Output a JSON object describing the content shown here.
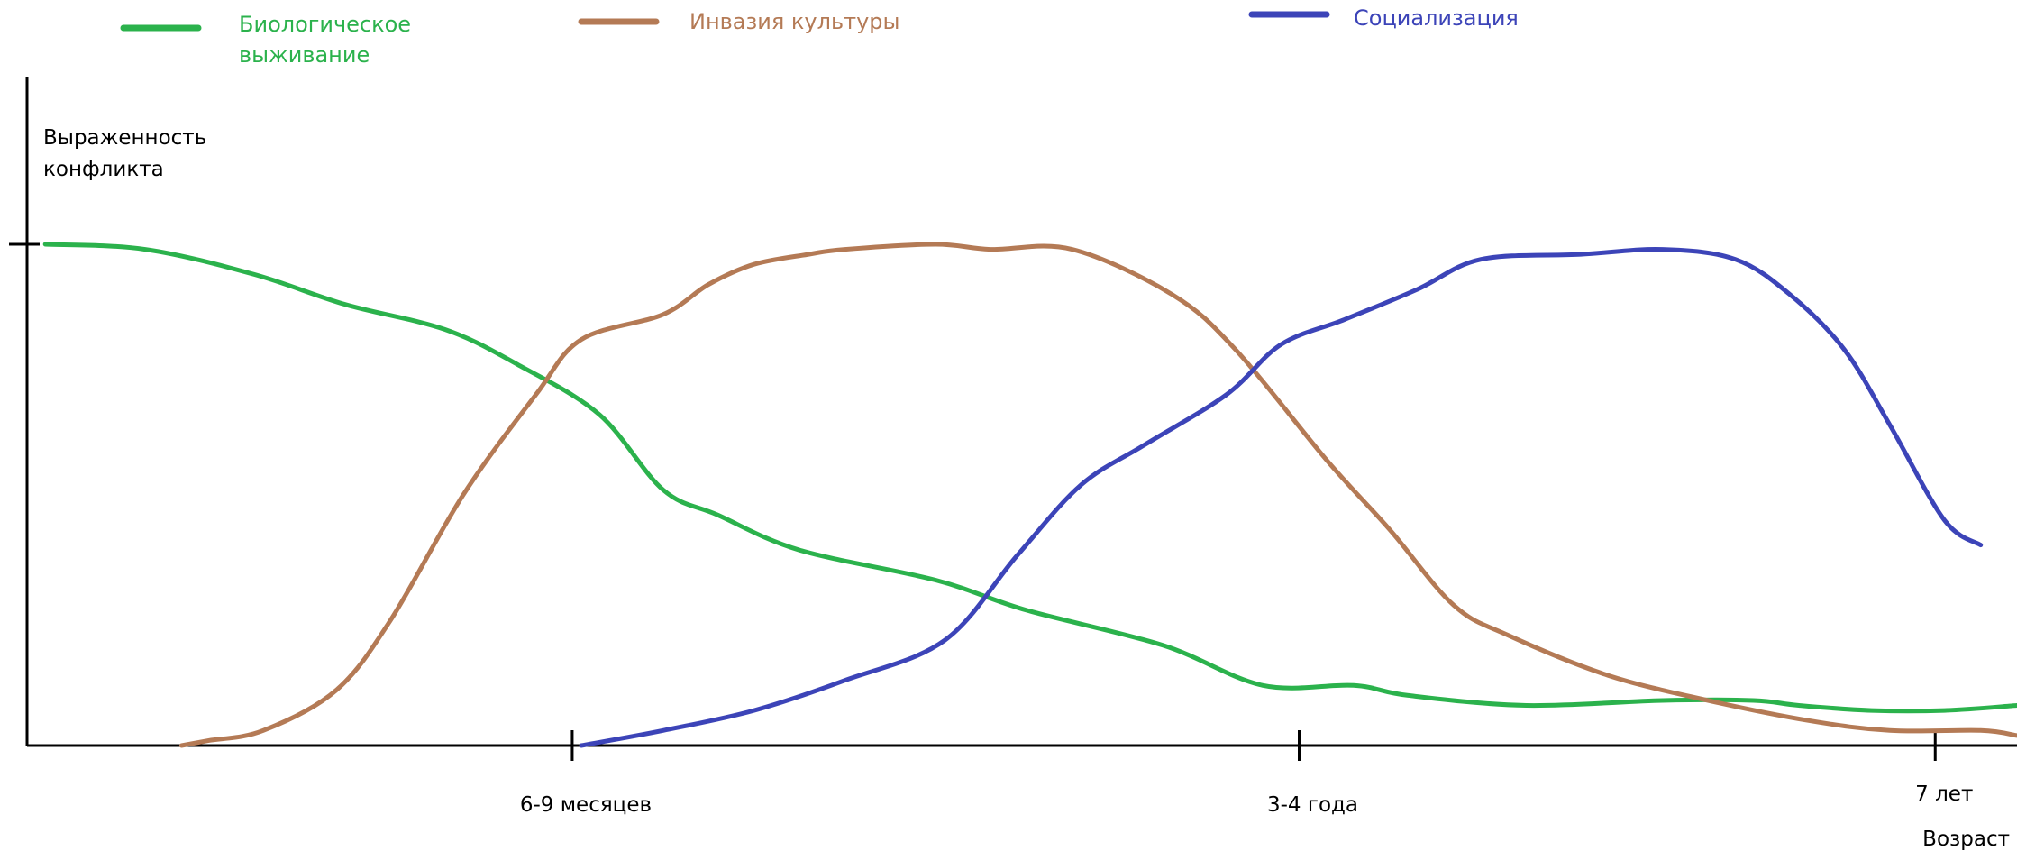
{
  "chart_data": {
    "type": "line",
    "title": "",
    "ylabel": [
      "Выраженность",
      "конфликта"
    ],
    "xlabel": "Возраст",
    "x_ticks": [
      {
        "x": 6,
        "label": "6-9 месяцев"
      },
      {
        "x": 14,
        "label": "3-4 года"
      },
      {
        "x": 21,
        "label": "7 лет"
      }
    ],
    "xlim": [
      0,
      21.9
    ],
    "ylim": [
      0,
      100
    ],
    "y_tick_at": 100,
    "grid": false,
    "legend_position": "top",
    "series": [
      {
        "name": "Биологическое выживание",
        "color": "#2bb24c",
        "legend_label": [
          "Биологическое",
          "выживание"
        ],
        "x": [
          0.2,
          1.3,
          2.5,
          3.5,
          4.6,
          5.4,
          6.3,
          7.0,
          7.6,
          8.5,
          10.0,
          11.0,
          12.5,
          13.6,
          14.6,
          15.2,
          16.5,
          18.0,
          19.0,
          19.5,
          20.3,
          21.1,
          21.9
        ],
        "y": [
          100,
          99,
          94,
          88,
          83,
          76,
          66,
          51,
          46,
          39,
          33,
          27,
          20,
          12,
          12,
          10,
          8,
          9,
          9,
          8,
          7,
          7,
          8
        ]
      },
      {
        "name": "Инвазия культуры",
        "color": "#b47a55",
        "legend_label": [
          "Инвазия культуры"
        ],
        "x": [
          1.7,
          2.0,
          2.6,
          3.4,
          4.0,
          4.8,
          5.6,
          6.1,
          7.0,
          7.5,
          8.0,
          8.6,
          9.0,
          10.0,
          10.6,
          11.5,
          12.6,
          13.3,
          14.3,
          15.0,
          15.7,
          16.3,
          17.4,
          18.5,
          19.6,
          20.5,
          21.5,
          21.9
        ],
        "y": [
          0,
          1,
          3,
          11,
          25,
          50,
          70,
          81,
          86,
          92,
          96,
          98,
          99,
          100,
          99,
          99,
          90,
          79,
          57,
          43,
          28,
          22,
          14,
          9,
          5,
          3,
          3,
          2
        ]
      },
      {
        "name": "Социализация",
        "color": "#3c44b8",
        "legend_label": [
          "Социализация"
        ],
        "x": [
          6.1,
          7.0,
          8.0,
          9.0,
          10.1,
          10.9,
          11.6,
          12.3,
          13.2,
          13.8,
          14.5,
          15.3,
          16.0,
          17.1,
          18.0,
          18.8,
          19.4,
          20.0,
          20.5,
          21.1,
          21.5
        ],
        "y": [
          0,
          3,
          7,
          13,
          21,
          38,
          52,
          60,
          70,
          80,
          85,
          91,
          97,
          98,
          99,
          97,
          90,
          79,
          64,
          45,
          40
        ]
      }
    ]
  }
}
